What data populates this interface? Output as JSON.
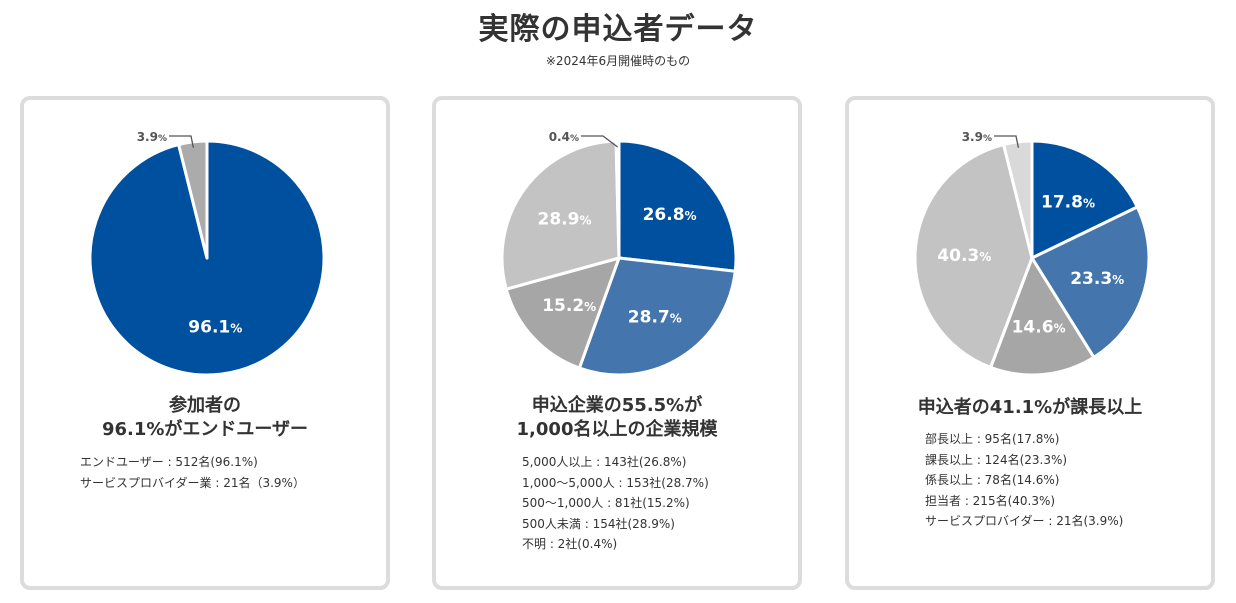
{
  "title": "実際の申込者データ",
  "note": "※2024年6月開催時のもの",
  "chart_data": [
    {
      "type": "pie",
      "heading": [
        "参加者の",
        "96.1%がエンドユーザー"
      ],
      "slices": [
        {
          "label": "エンドユーザー",
          "value": 96.1,
          "display": "96.1%",
          "color": "#0050a0"
        },
        {
          "label": "サービスプロバイダー業",
          "value": 3.9,
          "display": "3.9%",
          "color": "#ababab"
        }
      ],
      "details": [
        "エンドユーザー : 512名(96.1%)",
        "サービスプロバイダー業 : 21名（3.9%）"
      ]
    },
    {
      "type": "pie",
      "heading": [
        "申込企業の55.5%が",
        "1,000名以上の企業規模"
      ],
      "slices": [
        {
          "label": "5,000人以上",
          "value": 26.8,
          "display": "26.8%",
          "color": "#0050a0"
        },
        {
          "label": "1,000〜5,000人",
          "value": 28.7,
          "display": "28.7%",
          "color": "#4475ad"
        },
        {
          "label": "500〜1,000人",
          "value": 15.2,
          "display": "15.2%",
          "color": "#a6a6a6"
        },
        {
          "label": "500人未満",
          "value": 28.9,
          "display": "28.9%",
          "color": "#c3c3c3"
        },
        {
          "label": "不明",
          "value": 0.4,
          "display": "0.4%",
          "color": "#d9d9d9"
        }
      ],
      "details": [
        "5,000人以上 : 143社(26.8%)",
        "1,000〜5,000人 : 153社(28.7%)",
        "500〜1,000人 : 81社(15.2%)",
        "500人未満 : 154社(28.9%)",
        "不明 : 2社(0.4%)"
      ]
    },
    {
      "type": "pie",
      "heading": [
        "申込者の41.1%が課長以上"
      ],
      "slices": [
        {
          "label": "部長以上",
          "value": 17.8,
          "display": "17.8%",
          "color": "#0050a0"
        },
        {
          "label": "課長以上",
          "value": 23.3,
          "display": "23.3%",
          "color": "#4475ad"
        },
        {
          "label": "係長以上",
          "value": 14.6,
          "display": "14.6%",
          "color": "#a6a6a6"
        },
        {
          "label": "担当者",
          "value": 40.3,
          "display": "40.3%",
          "color": "#c3c3c3"
        },
        {
          "label": "サービスプロバイダー",
          "value": 3.9,
          "display": "3.9%",
          "color": "#d9d9d9"
        }
      ],
      "details": [
        "部長以上 : 95名(17.8%)",
        "課長以上 : 124名(23.3%)",
        "係長以上 : 78名(14.6%)",
        "担当者 : 215名(40.3%)",
        "サービスプロバイダー : 21名(3.9%)"
      ]
    }
  ]
}
